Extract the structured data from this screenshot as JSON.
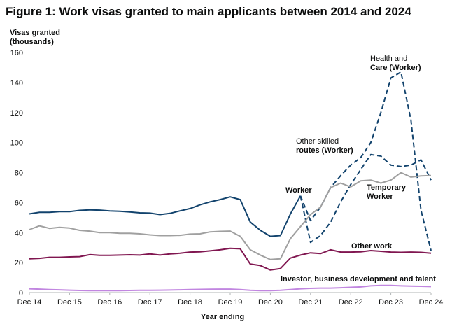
{
  "chart_data": {
    "type": "line",
    "title": "Figure 1: Work visas granted to main applicants between 2014 and 2024",
    "ylabel_line1": "Visas granted",
    "ylabel_line2": "(thousands)",
    "xlabel": "Year ending",
    "ylim": [
      0,
      160
    ],
    "yticks": [
      0,
      20,
      40,
      60,
      80,
      100,
      120,
      140,
      160
    ],
    "xticks": [
      "Dec 14",
      "Dec 15",
      "Dec 16",
      "Dec 17",
      "Dec 18",
      "Dec 19",
      "Dec 20",
      "Dec 21",
      "Dec 22",
      "Dec 23",
      "Dec 24"
    ],
    "periods": 41,
    "legend_position": "inline",
    "grid": false,
    "series": [
      {
        "name": "Worker",
        "color": "#12436d",
        "dash": "solid",
        "start_index": 0,
        "values": [
          52.5,
          53.5,
          53.5,
          54,
          54,
          54.8,
          55.2,
          55,
          54.5,
          54.2,
          53.8,
          53.2,
          53,
          52,
          52.8,
          54.5,
          56,
          58.5,
          60.5,
          62,
          63.8,
          62,
          47,
          41.5,
          37.5,
          38,
          52.5,
          64.5
        ]
      },
      {
        "name": "Other skilled routes (Worker)",
        "color": "#12436d",
        "dash": "dashed",
        "start_index": 27,
        "values": [
          64.5,
          33.5,
          38,
          47,
          60.5,
          72,
          82,
          92,
          91,
          85,
          84,
          85,
          88.5,
          75
        ]
      },
      {
        "name": "Health and Care (Worker)",
        "color": "#12436d",
        "dash": "dashed",
        "start_index": 27,
        "values": [
          64.5,
          48,
          57,
          70,
          78,
          85,
          90,
          100,
          120,
          143,
          147,
          115,
          55,
          28
        ]
      },
      {
        "name": "Temporary Worker",
        "color": "#a0a0a0",
        "dash": "solid",
        "start_index": 0,
        "values": [
          42,
          44.5,
          42.8,
          43.5,
          43,
          41.5,
          41,
          40,
          40,
          39.5,
          39.5,
          39.2,
          38.5,
          38,
          38,
          38.2,
          39,
          39.2,
          40.5,
          40.8,
          41,
          37.5,
          28.5,
          25,
          22,
          22.5,
          36,
          44,
          52,
          57,
          70,
          73,
          70.5,
          74.5,
          75,
          73,
          75,
          80,
          77,
          77.8,
          78
        ]
      },
      {
        "name": "Other work",
        "color": "#801650",
        "dash": "solid",
        "start_index": 0,
        "values": [
          22.5,
          22.8,
          23.5,
          23.5,
          23.8,
          24,
          25.3,
          24.8,
          24.8,
          25,
          25.2,
          25,
          25.8,
          25,
          25.8,
          26.2,
          27,
          27.2,
          27.8,
          28.5,
          29.5,
          29.2,
          19,
          18,
          15,
          16,
          23,
          25,
          26.5,
          26,
          28.5,
          27,
          27,
          27.2,
          28,
          27.5,
          27,
          26.8,
          27,
          26.8,
          26.2
        ]
      },
      {
        "name": "Investor, business development and talent",
        "color": "#c186e0",
        "dash": "solid",
        "start_index": 0,
        "values": [
          2.5,
          2.3,
          2.0,
          1.8,
          1.6,
          1.4,
          1.3,
          1.3,
          1.3,
          1.3,
          1.4,
          1.5,
          1.5,
          1.6,
          1.7,
          1.8,
          2.0,
          2.1,
          2.2,
          2.3,
          2.3,
          2.0,
          1.5,
          1.3,
          1.3,
          1.5,
          2.0,
          2.5,
          2.8,
          3.0,
          3.0,
          3.2,
          3.5,
          3.8,
          4.5,
          4.8,
          4.8,
          4.5,
          4.3,
          4.2,
          4.0
        ]
      }
    ],
    "annotations": {
      "health_care_line1": "Health and",
      "health_care_line2": "Care (Worker)",
      "other_skilled_line1": "Other skilled",
      "other_skilled_line2": "routes (Worker)",
      "worker": "Worker",
      "temporary_line1": "Temporary",
      "temporary_line2": "Worker",
      "other_work": "Other work",
      "investor": "Investor, business development and talent"
    }
  }
}
